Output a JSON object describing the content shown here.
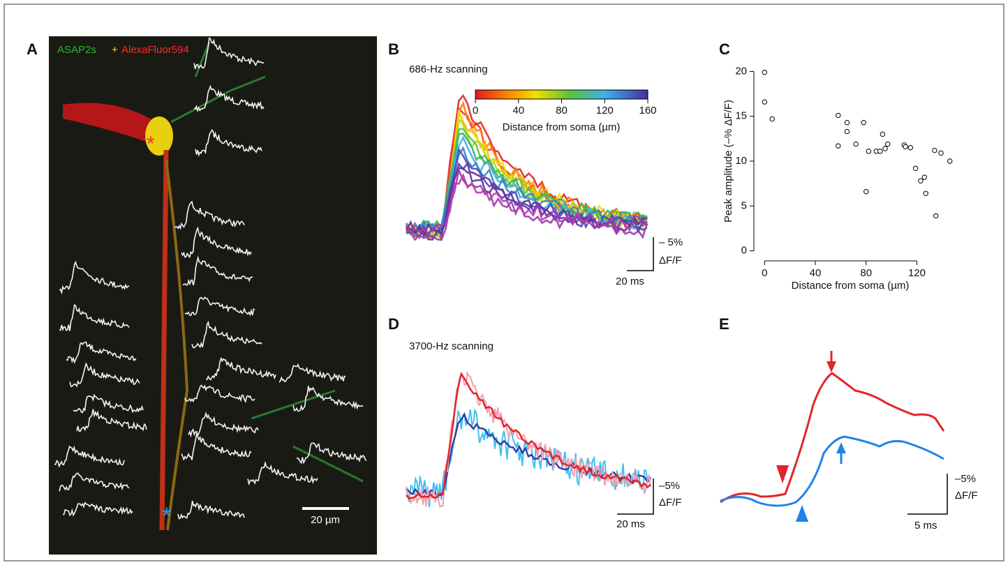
{
  "figure": {
    "panel_labels": [
      "A",
      "B",
      "C",
      "D",
      "E"
    ],
    "a": {
      "label_green": "ASAP2s",
      "label_plus": "+",
      "label_red": "AlexaFluor594",
      "scale": "20 µm"
    },
    "b": {
      "title": "686-Hz scanning",
      "colorbar_ticks": [
        0,
        40,
        80,
        120,
        160
      ],
      "colorbar_label": "Distance from soma (µm)",
      "scale_y_1": "– 5%",
      "scale_y_2": "ΔF/F",
      "scale_x": "20 ms"
    },
    "d": {
      "title": "3700-Hz scanning",
      "scale_y_1": "–5%",
      "scale_y_2": "ΔF/F",
      "scale_x": "20 ms"
    },
    "e": {
      "scale_y_1": "–5%",
      "scale_y_2": "ΔF/F",
      "scale_x": "5 ms"
    }
  },
  "chart_data": {
    "type": "scatter",
    "x_label": "Distance from soma (µm)",
    "y_label": "Peak amplitude (–% ΔF/F)",
    "x": [
      0,
      0,
      6,
      58,
      58,
      65,
      65,
      72,
      78,
      80,
      82,
      88,
      91,
      93,
      95,
      97,
      110,
      111,
      115,
      119,
      123,
      126,
      127,
      134,
      135,
      139,
      146
    ],
    "values": [
      19.9,
      16.6,
      14.7,
      15.1,
      11.7,
      14.3,
      13.3,
      11.9,
      14.3,
      6.6,
      11.1,
      11.1,
      11.1,
      13.0,
      11.4,
      11.9,
      11.8,
      11.6,
      11.5,
      9.2,
      7.8,
      8.2,
      6.4,
      11.2,
      3.9,
      10.9,
      10.0
    ],
    "xlim": [
      -4,
      150
    ],
    "ylim": [
      -0.5,
      20.5
    ],
    "xticks": [
      0,
      40,
      80,
      120
    ],
    "yticks": [
      0,
      5,
      10,
      15,
      20
    ],
    "marker_color": "#000000"
  }
}
